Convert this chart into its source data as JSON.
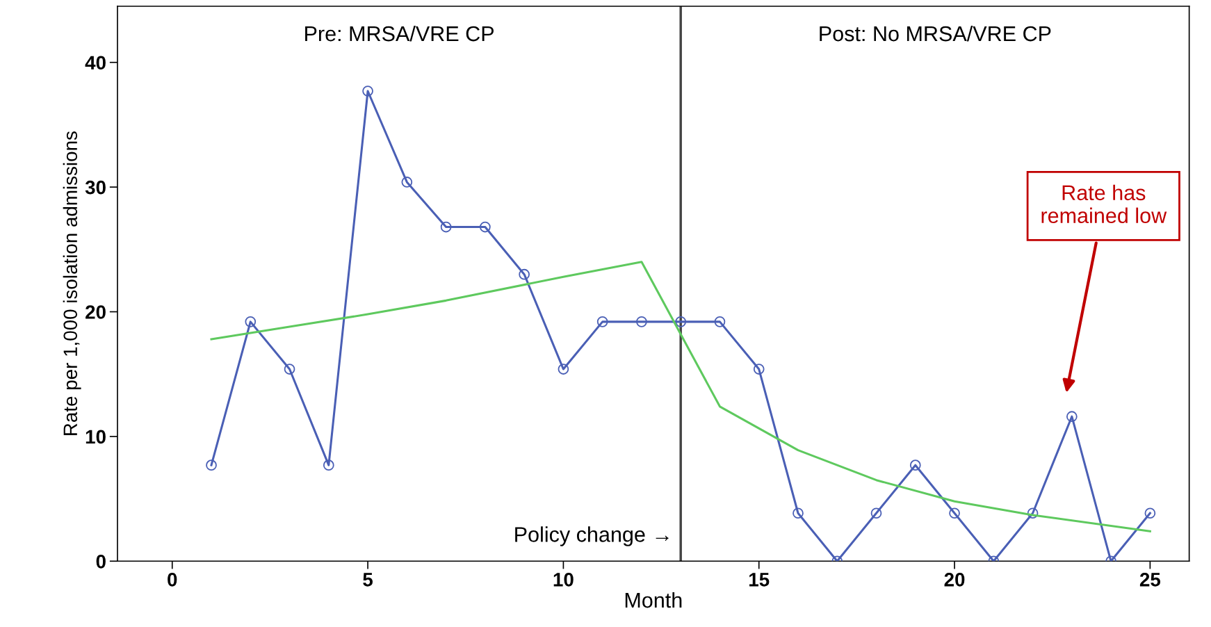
{
  "chart_data": {
    "type": "line",
    "xlabel": "Month",
    "ylabel": "Rate per 1,000 isolation admissions",
    "xlim": [
      -1.4,
      26
    ],
    "ylim": [
      0,
      44.5
    ],
    "xticks": [
      0,
      5,
      10,
      15,
      20,
      25
    ],
    "yticks": [
      0,
      10,
      20,
      30,
      40
    ],
    "grid": false,
    "series": [
      {
        "color": "#4a5fb5",
        "marker": "circle",
        "x": [
          1,
          2,
          3,
          4,
          5,
          6,
          7,
          8,
          9,
          10,
          11,
          12,
          13,
          14,
          15,
          16,
          17,
          18,
          19,
          20,
          21,
          22,
          23,
          24,
          25
        ],
        "values": [
          7.7,
          19.2,
          15.4,
          7.7,
          37.7,
          30.4,
          26.8,
          26.8,
          23.0,
          15.4,
          19.2,
          19.2,
          19.2,
          19.2,
          15.4,
          3.85,
          0,
          3.85,
          7.7,
          3.85,
          0,
          3.85,
          11.6,
          0,
          3.85
        ]
      },
      {
        "color": "#5ec95e",
        "marker": "none",
        "x": [
          1,
          3,
          5,
          7,
          10,
          12,
          14,
          16,
          18,
          20,
          22,
          25
        ],
        "values": [
          17.8,
          18.8,
          19.8,
          20.9,
          22.8,
          24.0,
          12.4,
          8.9,
          6.5,
          4.8,
          3.7,
          2.4
        ]
      }
    ],
    "ref_lines": [
      {
        "axis": "x",
        "value": 13,
        "label": "Policy change →",
        "color": "#444444"
      }
    ],
    "annotations": [
      "Pre: MRSA/VRE CP",
      "Post: No MRSA/VRE CP",
      "Rate has\nremained low"
    ]
  }
}
